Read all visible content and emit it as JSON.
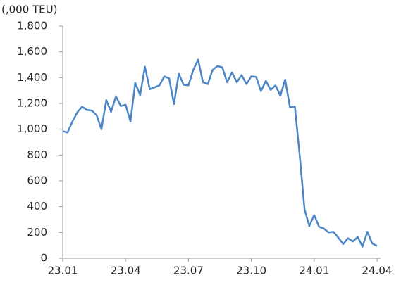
{
  "chart_data": {
    "type": "line",
    "y_label": "(,000 TEU)",
    "categories": [
      "23.01",
      null,
      null,
      null,
      null,
      null,
      null,
      null,
      null,
      null,
      null,
      null,
      null,
      "23.04",
      null,
      null,
      null,
      null,
      null,
      null,
      null,
      null,
      null,
      null,
      null,
      null,
      "23.07",
      null,
      null,
      null,
      null,
      null,
      null,
      null,
      null,
      null,
      null,
      null,
      null,
      "23.10",
      null,
      null,
      null,
      null,
      null,
      null,
      null,
      null,
      null,
      null,
      null,
      null,
      "24.01",
      null,
      null,
      null,
      null,
      null,
      null,
      null,
      null,
      null,
      null,
      null,
      null,
      "24.04"
    ],
    "series": [
      {
        "color": "#4a86c8",
        "values": [
          985,
          975,
          1060,
          1130,
          1175,
          1150,
          1145,
          1110,
          1000,
          1225,
          1135,
          1255,
          1180,
          1190,
          1060,
          1360,
          1265,
          1485,
          1310,
          1325,
          1340,
          1410,
          1395,
          1195,
          1430,
          1345,
          1340,
          1460,
          1540,
          1365,
          1350,
          1460,
          1490,
          1480,
          1365,
          1440,
          1365,
          1420,
          1350,
          1410,
          1405,
          1295,
          1375,
          1305,
          1340,
          1260,
          1385,
          1170,
          1175,
          800,
          380,
          250,
          335,
          245,
          230,
          200,
          205,
          160,
          110,
          155,
          130,
          165,
          90,
          205,
          115,
          95
        ]
      }
    ],
    "ylim": [
      0,
      1800
    ],
    "yticks": [
      0,
      200,
      400,
      600,
      800,
      {
        "value": 1000,
        "label": "1,000"
      },
      {
        "value": 1200,
        "label": "1,200"
      },
      {
        "value": 1400,
        "label": "1,400"
      },
      {
        "value": 1600,
        "label": "1,600"
      },
      {
        "value": 1800,
        "label": "1,800"
      }
    ]
  }
}
